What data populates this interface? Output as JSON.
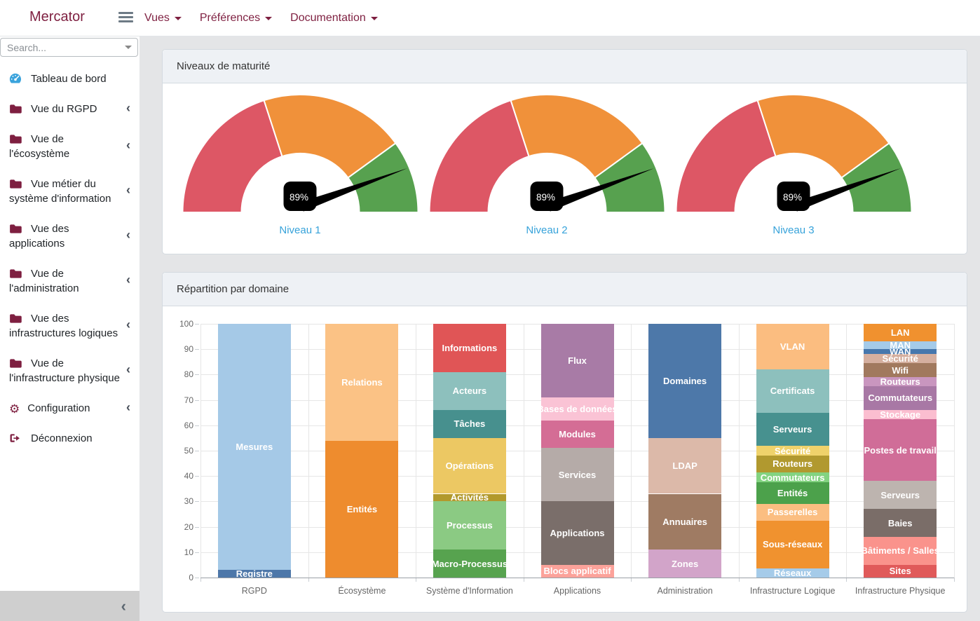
{
  "navbar": {
    "brand": "Mercator",
    "items": [
      {
        "label": "Vues"
      },
      {
        "label": "Préférences"
      },
      {
        "label": "Documentation"
      }
    ]
  },
  "sidebar": {
    "search_placeholder": "Search...",
    "items": [
      {
        "label": "Tableau de bord",
        "icon": "tachometer-icon",
        "expandable": false
      },
      {
        "label": "Vue du RGPD",
        "icon": "folder-icon",
        "expandable": true
      },
      {
        "label": "Vue de l'écosystème",
        "icon": "folder-icon",
        "expandable": true
      },
      {
        "label": "Vue métier du système d'information",
        "icon": "folder-icon",
        "expandable": true
      },
      {
        "label": "Vue des applications",
        "icon": "folder-icon",
        "expandable": true
      },
      {
        "label": "Vue de l'administration",
        "icon": "folder-icon",
        "expandable": true
      },
      {
        "label": "Vue des infrastructures logiques",
        "icon": "folder-icon",
        "expandable": true
      },
      {
        "label": "Vue de l'infrastructure physique",
        "icon": "folder-icon",
        "expandable": true
      },
      {
        "label": "Configuration",
        "icon": "gear-icon",
        "expandable": true
      },
      {
        "label": "Déconnexion",
        "icon": "sign-out-icon",
        "expandable": false
      }
    ],
    "collapse_icon": "chevron-left-icon"
  },
  "cards": {
    "maturity": {
      "title": "Niveaux de maturité"
    },
    "distribution": {
      "title": "Répartition par domaine"
    }
  },
  "colors": {
    "accent_maroon": "#7e1f40",
    "content_background": "#e4e5e7",
    "card_header_background": "#eef1f5",
    "gauge_link_blue": "#36a2da"
  },
  "chart_data": [
    {
      "type": "gauge",
      "title": "Niveaux de maturité",
      "unit": "%",
      "gauges": [
        {
          "label": "Niveau 1",
          "value": 89,
          "value_text": "89%"
        },
        {
          "label": "Niveau 2",
          "value": 89,
          "value_text": "89%"
        },
        {
          "label": "Niveau 3",
          "value": 89,
          "value_text": "89%"
        }
      ],
      "bands": [
        {
          "from": 0,
          "to": 40,
          "color": "#dd5765"
        },
        {
          "from": 40,
          "to": 80,
          "color": "#f0913a"
        },
        {
          "from": 80,
          "to": 100,
          "color": "#57a14f"
        }
      ],
      "needle_color": "#000000",
      "badge_background": "#000000",
      "badge_text_color": "#ffffff",
      "label_color": "#36a2da"
    },
    {
      "type": "bar",
      "stacked": true,
      "title": "Répartition par domaine",
      "ylim": [
        0,
        100
      ],
      "y_tick_step": 10,
      "grid": true,
      "axis_text_color": "#666666",
      "grid_color": "#e6e6e6",
      "bar_label_color": "#ffffff",
      "categories": [
        "RGPD",
        "Écosystème",
        "Système d'Information",
        "Applications",
        "Administration",
        "Infrastructure Logique",
        "Infrastructure Physique"
      ],
      "stacks": [
        {
          "category": "RGPD",
          "segments": [
            {
              "label": "Registre",
              "value": 3,
              "color": "#4d77a9"
            },
            {
              "label": "Mesures",
              "value": 97,
              "color": "#a5c9e7"
            }
          ]
        },
        {
          "category": "Écosystème",
          "segments": [
            {
              "label": "Entités",
              "value": 54,
              "color": "#ee8c2e"
            },
            {
              "label": "Relations",
              "value": 46,
              "color": "#fbc285"
            }
          ]
        },
        {
          "category": "Système d'Information",
          "segments": [
            {
              "label": "Macro-Processus",
              "value": 11,
              "color": "#57a34f"
            },
            {
              "label": "Processus",
              "value": 19,
              "color": "#8bca83"
            },
            {
              "label": "Activités",
              "value": 3,
              "color": "#b2992c"
            },
            {
              "label": "Opérations",
              "value": 22,
              "color": "#ecc863"
            },
            {
              "label": "Tâches",
              "value": 11,
              "color": "#47908e"
            },
            {
              "label": "Acteurs",
              "value": 15,
              "color": "#8dc0bd"
            },
            {
              "label": "Informations",
              "value": 19,
              "color": "#e05556"
            }
          ]
        },
        {
          "category": "Applications",
          "segments": [
            {
              "label": "Blocs applicatif",
              "value": 5,
              "color": "#fca29a"
            },
            {
              "label": "Applications",
              "value": 25,
              "color": "#7a6e6a"
            },
            {
              "label": "Services",
              "value": 21,
              "color": "#b5aba8"
            },
            {
              "label": "Modules",
              "value": 11,
              "color": "#d46d95"
            },
            {
              "label": "Bases de données",
              "value": 9,
              "color": "#fac3d5"
            },
            {
              "label": "Flux",
              "value": 29,
              "color": "#a87ba6"
            }
          ]
        },
        {
          "category": "Administration",
          "segments": [
            {
              "label": "Zones",
              "value": 11,
              "color": "#d2a4c9"
            },
            {
              "label": "Annuaires",
              "value": 22,
              "color": "#9f7b63"
            },
            {
              "label": "LDAP",
              "value": 22,
              "color": "#dcb9a9"
            },
            {
              "label": "Domaines",
              "value": 45,
              "color": "#4d78a9"
            }
          ]
        },
        {
          "category": "Infrastructure Logique",
          "segments": [
            {
              "label": "Réseaux",
              "value": 3.5,
              "color": "#a5cbe9"
            },
            {
              "label": "Sous-réseaux",
              "value": 19,
              "color": "#f0922f"
            },
            {
              "label": "Passerelles",
              "value": 6.5,
              "color": "#fbbe81"
            },
            {
              "label": "Entités",
              "value": 8.5,
              "color": "#4ca14b"
            },
            {
              "label": "Commutateurs",
              "value": 4,
              "color": "#83d381"
            },
            {
              "label": "Routeurs",
              "value": 6.5,
              "color": "#b1992f"
            },
            {
              "label": "Sécurité",
              "value": 4,
              "color": "#efd26b"
            },
            {
              "label": "Serveurs",
              "value": 13,
              "color": "#47918f"
            },
            {
              "label": "Certificats",
              "value": 17,
              "color": "#8dc0bd"
            },
            {
              "label": "VLAN",
              "value": 18,
              "color": "#fbbd80"
            }
          ]
        },
        {
          "category": "Infrastructure Physique",
          "segments": [
            {
              "label": "Sites",
              "value": 5,
              "color": "#e05a5a"
            },
            {
              "label": "Bâtiments / Salles",
              "value": 11,
              "color": "#fa938c"
            },
            {
              "label": "Baies",
              "value": 11,
              "color": "#7a6d68"
            },
            {
              "label": "Serveurs",
              "value": 11,
              "color": "#bdb4af"
            },
            {
              "label": "Postes de travail",
              "value": 24.5,
              "color": "#d06d98"
            },
            {
              "label": "Stockage",
              "value": 3.5,
              "color": "#fbbed0"
            },
            {
              "label": "Commutateurs",
              "value": 9.5,
              "color": "#a878a5"
            },
            {
              "label": "Routeurs",
              "value": 3.5,
              "color": "#c996bf"
            },
            {
              "label": "Wifi",
              "value": 5.5,
              "color": "#a1795e"
            },
            {
              "label": "Sécurité",
              "value": 3.5,
              "color": "#d5af9f"
            },
            {
              "label": "WAN",
              "value": 2,
              "color": "#4677ad"
            },
            {
              "label": "MAN",
              "value": 3,
              "color": "#a5cbe9"
            },
            {
              "label": "LAN",
              "value": 7,
              "color": "#f0912f"
            }
          ]
        }
      ]
    }
  ]
}
